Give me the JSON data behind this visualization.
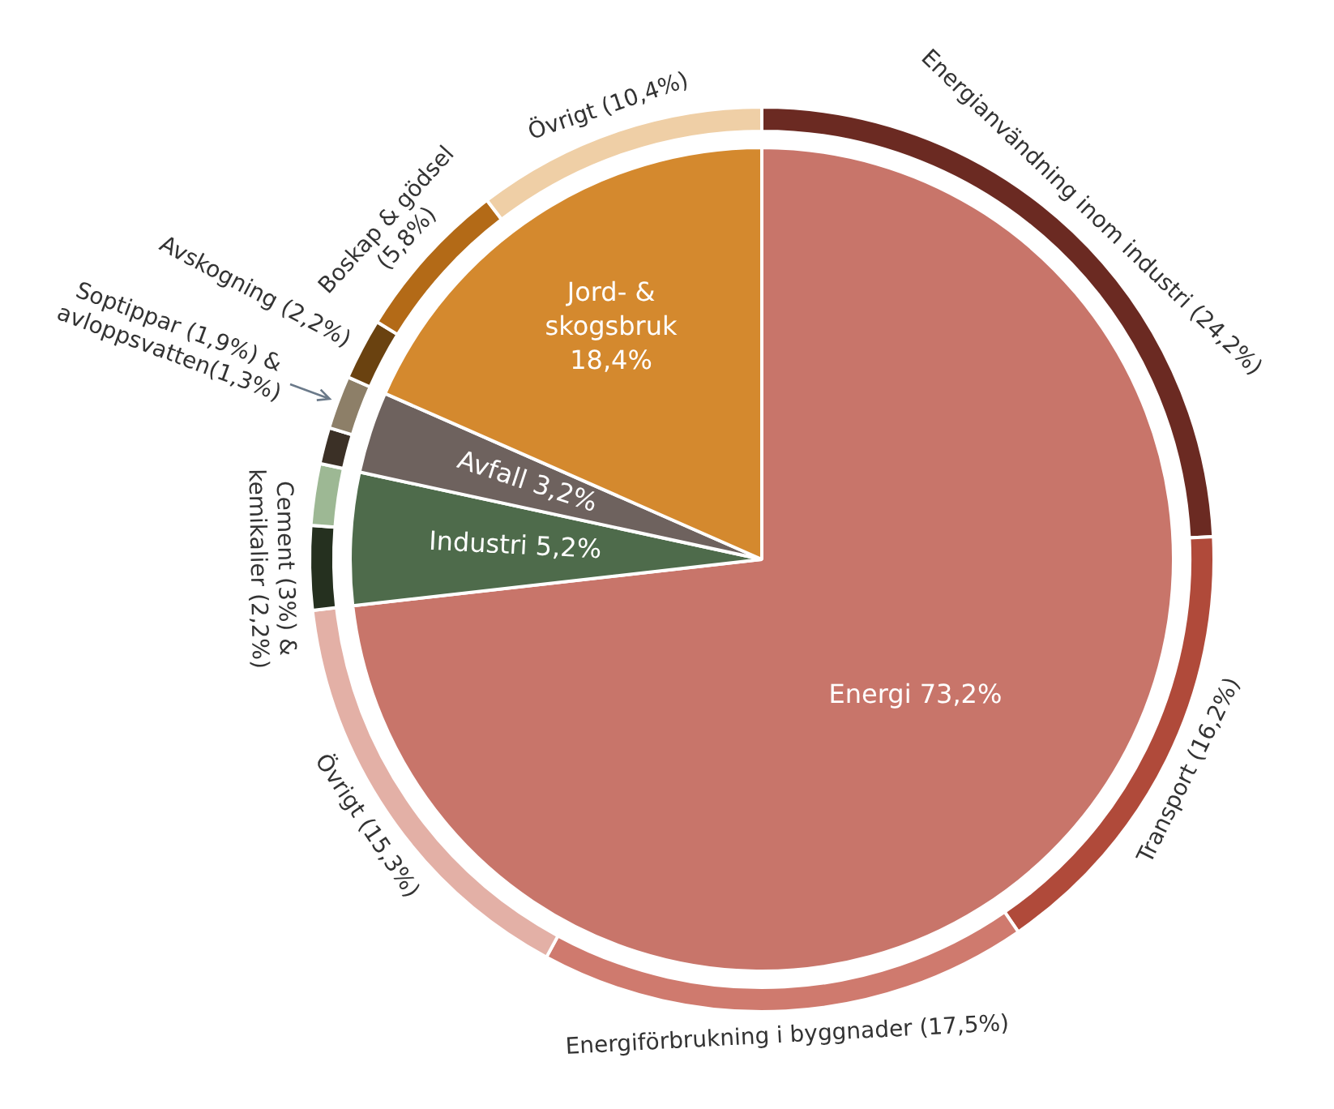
{
  "chart_data": [
    {
      "type": "pie",
      "categories": [
        "Energi",
        "Industri",
        "Avfall",
        "Jord- & skogsbruk"
      ],
      "values": [
        73.2,
        5.2,
        3.2,
        18.4
      ],
      "value_labels": [
        "73,2%",
        "5,2%",
        "3,2%",
        "18,4%"
      ],
      "colors": [
        "#c8756a",
        "#4e6b4b",
        "#6e625e",
        "#d4892e"
      ]
    },
    {
      "type": "donut",
      "categories": [
        "Energianvändning inom industri (24,2%)",
        "Transport (16,2%)",
        "Energiförbrukning i byggnader (17,5%)",
        "Övrigt (15,3%)",
        "Cement (3%) & kemikalier (2,2%)",
        null,
        null,
        "Soptippar (1,9%) & avloppsvatten(1,3%)",
        "Avskogning (2,2%)",
        "Boskap & gödsel (5,8%)",
        "Övrigt (10,4%)"
      ],
      "values": [
        24.2,
        16.2,
        17.5,
        15.3,
        3,
        2.2,
        1.3,
        1.9,
        2.2,
        5.8,
        10.4
      ],
      "colors": [
        "#6b2a22",
        "#b04a3a",
        "#cf7a6e",
        "#e3b0a6",
        "#25301f",
        "#9db894",
        "#3b3026",
        "#8d7f68",
        "#6a4210",
        "#b36a17",
        "#efcfa6"
      ]
    }
  ]
}
